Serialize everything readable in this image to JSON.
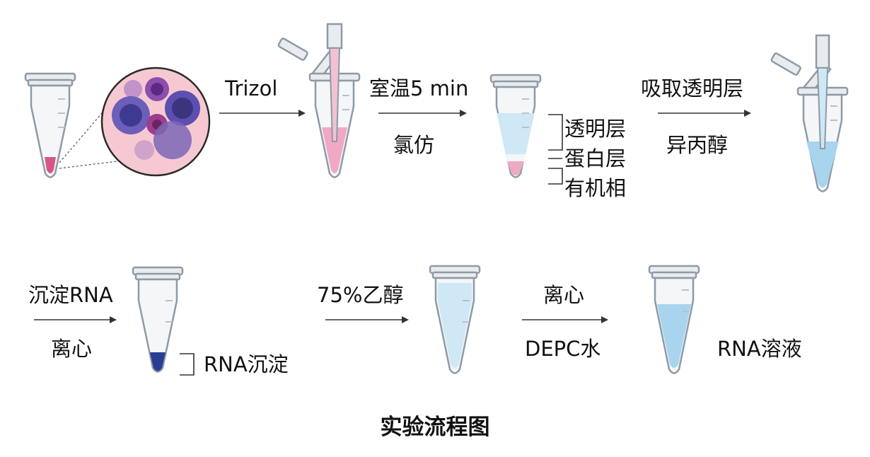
{
  "steps_row1": {
    "trizol": "Trizol",
    "room_temp": "室温5 min",
    "chloroform": "氯仿",
    "layer_clear": "透明层",
    "layer_protein": "蛋白层",
    "layer_organic": "有机相",
    "absorb_clear": "吸取透明层",
    "isopropanol": "异丙醇"
  },
  "steps_row2": {
    "precipitate": "沉淀RNA",
    "centrifuge1": "离心",
    "rna_pellet": "RNA沉淀",
    "ethanol": "75%乙醇",
    "centrifuge2": "离心",
    "depc_water": "DEPC水",
    "rna_solution": "RNA溶液"
  },
  "title": "实验流程图",
  "colors": {
    "pink": "#f0a9c4",
    "pink_dark": "#d7568a",
    "blue_light": "#cfe8f5",
    "blue_mid": "#a8d4ee",
    "blue_dark": "#2b3d93",
    "cell_bg": "#f6c9d2",
    "cell_purple": "#6a4fb0"
  }
}
